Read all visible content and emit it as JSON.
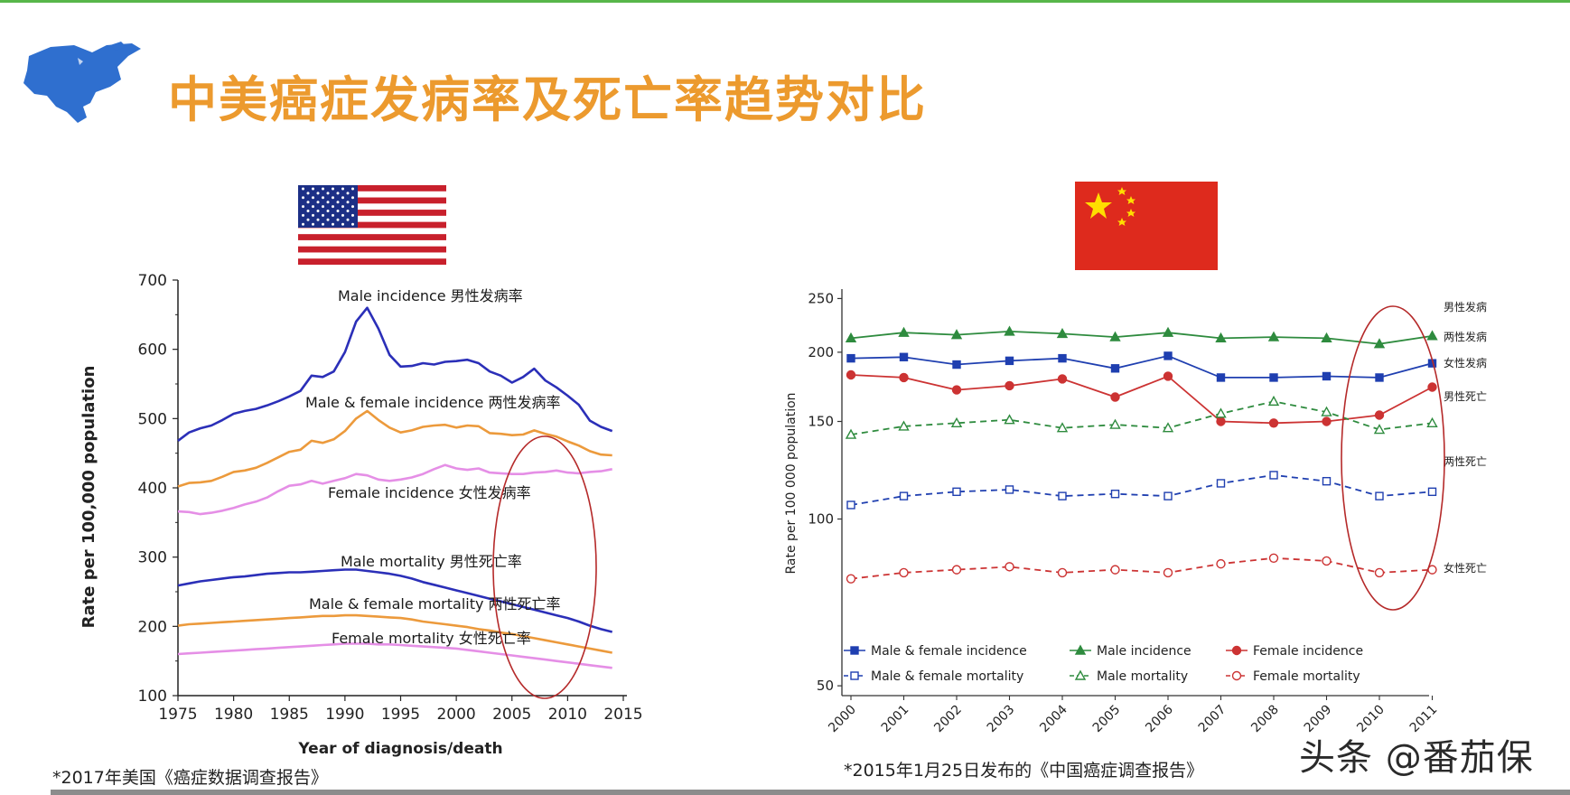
{
  "slide": {
    "title": "中美癌症发病率及死亡率趋势对比",
    "footnote_us": "*2017年美国《癌症数据调查报告》",
    "footnote_cn": "*2015年1月25日发布的《中国癌症调查报告》",
    "watermark": "头条 @番茄保",
    "icons": [
      "north-america-map-icon",
      "us-flag-icon",
      "china-flag-icon"
    ]
  },
  "colors": {
    "title": "#ec9a2e",
    "accent": "#58b64a",
    "us_male": "#2b2fb8",
    "us_both": "#ec9a3c",
    "us_female": "#e58fe6",
    "cn_both": "#1f3fb0",
    "cn_male": "#2e8b3e",
    "cn_female": "#cc3333",
    "highlight_ellipse": "#b52a2a"
  },
  "chart_data": [
    {
      "type": "line",
      "xlabel": "Year of diagnosis/death",
      "ylabel": "Rate per 100,000 population",
      "xlim": [
        1975,
        2015
      ],
      "ylim": [
        100,
        700
      ],
      "xticks": [
        "1975",
        "1980",
        "1985",
        "1990",
        "1995",
        "2000",
        "2005",
        "2010",
        "2015"
      ],
      "yticks": [
        "100",
        "200",
        "300",
        "400",
        "500",
        "600",
        "700"
      ],
      "grid": false,
      "x": [
        1975,
        1976,
        1977,
        1978,
        1979,
        1980,
        1981,
        1982,
        1983,
        1984,
        1985,
        1986,
        1987,
        1988,
        1989,
        1990,
        1991,
        1992,
        1993,
        1994,
        1995,
        1996,
        1997,
        1998,
        1999,
        2000,
        2001,
        2002,
        2003,
        2004,
        2005,
        2006,
        2007,
        2008,
        2009,
        2010,
        2011,
        2012,
        2013,
        2014
      ],
      "series": [
        {
          "name": "Male incidence 男性发病率",
          "color": "#2b2fb8",
          "style": "solid",
          "values": [
            468,
            480,
            486,
            490,
            498,
            507,
            511,
            514,
            519,
            525,
            532,
            540,
            562,
            560,
            568,
            596,
            640,
            660,
            630,
            592,
            575,
            576,
            580,
            578,
            582,
            583,
            585,
            580,
            568,
            562,
            552,
            560,
            572,
            555,
            545,
            533,
            520,
            497,
            488,
            482
          ]
        },
        {
          "name": "Male & female incidence 两性发病率",
          "color": "#ec9a3c",
          "style": "solid",
          "values": [
            402,
            407,
            408,
            410,
            416,
            423,
            425,
            429,
            436,
            444,
            452,
            455,
            468,
            465,
            470,
            482,
            500,
            511,
            498,
            487,
            480,
            483,
            488,
            490,
            491,
            487,
            490,
            489,
            479,
            478,
            476,
            477,
            483,
            478,
            474,
            467,
            461,
            453,
            448,
            447
          ]
        },
        {
          "name": "Female incidence 女性发病率",
          "color": "#e58fe6",
          "style": "solid",
          "values": [
            366,
            365,
            362,
            364,
            367,
            371,
            376,
            380,
            386,
            395,
            403,
            405,
            410,
            406,
            410,
            414,
            420,
            418,
            412,
            410,
            412,
            415,
            420,
            427,
            433,
            428,
            426,
            428,
            422,
            421,
            420,
            420,
            422,
            423,
            425,
            422,
            421,
            423,
            424,
            427
          ]
        },
        {
          "name": "Male mortality 男性死亡率",
          "color": "#2b2fb8",
          "style": "solid",
          "values": [
            259,
            262,
            265,
            267,
            269,
            271,
            272,
            274,
            276,
            277,
            278,
            278,
            279,
            280,
            281,
            282,
            282,
            280,
            278,
            276,
            273,
            269,
            264,
            260,
            256,
            252,
            248,
            244,
            240,
            236,
            232,
            228,
            224,
            220,
            216,
            212,
            207,
            201,
            196,
            192
          ]
        },
        {
          "name": "Male & female mortality 两性死亡率",
          "color": "#ec9a3c",
          "style": "solid",
          "values": [
            201,
            203,
            204,
            205,
            206,
            207,
            208,
            209,
            210,
            211,
            212,
            213,
            214,
            215,
            215,
            216,
            216,
            215,
            214,
            213,
            212,
            210,
            207,
            205,
            203,
            201,
            199,
            196,
            194,
            191,
            189,
            186,
            183,
            180,
            177,
            174,
            171,
            168,
            165,
            162
          ]
        },
        {
          "name": "Female mortality 女性死亡率",
          "color": "#e58fe6",
          "style": "solid",
          "values": [
            160,
            161,
            162,
            163,
            164,
            165,
            166,
            167,
            168,
            169,
            170,
            171,
            172,
            173,
            174,
            175,
            175,
            175,
            174,
            174,
            173,
            172,
            171,
            170,
            169,
            168,
            166,
            164,
            162,
            160,
            158,
            156,
            154,
            152,
            150,
            148,
            146,
            144,
            142,
            140
          ]
        }
      ],
      "annotations": [
        "Male incidence 男性发病率",
        "Male & female incidence 两性发病率",
        "Female incidence 女性发病率",
        "Male mortality 男性死亡率",
        "Male & female mortality 两性死亡率",
        "Female mortality 女性死亡率"
      ]
    },
    {
      "type": "line",
      "xlabel": "",
      "ylabel": "Rate per 100 000 population",
      "ylim": [
        48,
        260
      ],
      "yscale": "log",
      "categories": [
        "2000",
        "2001",
        "2002",
        "2003",
        "2004",
        "2005",
        "2006",
        "2007",
        "2008",
        "2009",
        "2010",
        "2011"
      ],
      "yticks": [
        "50",
        "100",
        "150",
        "200",
        "250"
      ],
      "grid": false,
      "legend_position": "bottom",
      "series": [
        {
          "name": "Male & female incidence",
          "color": "#1f3fb0",
          "style": "solid",
          "marker": "filled-square",
          "values": [
            195,
            196,
            190,
            193,
            195,
            187,
            197,
            180,
            180,
            181,
            180,
            191
          ]
        },
        {
          "name": "Male incidence",
          "color": "#2e8b3e",
          "style": "solid",
          "marker": "filled-triangle",
          "values": [
            212,
            217,
            215,
            218,
            216,
            213,
            217,
            212,
            213,
            212,
            207,
            214
          ]
        },
        {
          "name": "Female incidence",
          "color": "#cc3333",
          "style": "solid",
          "marker": "filled-circle",
          "values": [
            182,
            180,
            171,
            174,
            179,
            166,
            181,
            150,
            149,
            150,
            154,
            173
          ]
        },
        {
          "name": "Male & female mortality",
          "color": "#1f3fb0",
          "style": "dashed",
          "marker": "open-square",
          "values": [
            106,
            110,
            112,
            113,
            110,
            111,
            110,
            116,
            120,
            117,
            110,
            112
          ]
        },
        {
          "name": "Male mortality",
          "color": "#2e8b3e",
          "style": "dashed",
          "marker": "open-triangle",
          "values": [
            142,
            147,
            149,
            151,
            146,
            148,
            146,
            155,
            163,
            156,
            145,
            149
          ]
        },
        {
          "name": "Female mortality",
          "color": "#cc3333",
          "style": "dashed",
          "marker": "open-circle",
          "values": [
            78,
            80,
            81,
            82,
            80,
            81,
            80,
            83,
            85,
            84,
            80,
            81
          ]
        }
      ],
      "end_labels": [
        "男性发病",
        "两性发病",
        "女性发病",
        "男性死亡",
        "两性死亡",
        "女性死亡"
      ]
    }
  ]
}
